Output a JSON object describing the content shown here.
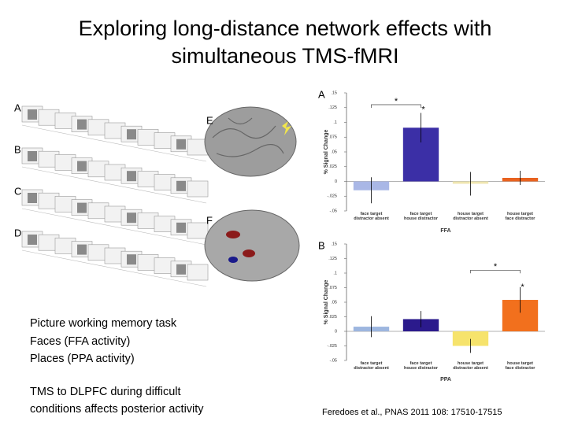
{
  "title": [
    "Exploring long-distance network effects with",
    "simultaneous TMS-fMRI"
  ],
  "figure": {
    "panel_labels": [
      "A",
      "B",
      "C",
      "D",
      "E",
      "F"
    ]
  },
  "body_text": [
    "Picture working memory task",
    "Faces (FFA activity)",
    "Places (PPA activity)"
  ],
  "conclusion_text": [
    "TMS to DLPFC during difficult",
    "conditions affects posterior activity"
  ],
  "citation": "Feredoes et al., PNAS 2011 108: 17510-17515",
  "chart_data": [
    {
      "type": "bar",
      "panel": "A",
      "ylabel": "% Signal Change",
      "xlabel": "FFA",
      "categories": [
        "face target\ndistractor absent",
        "face target\nhouse distractor",
        "house target\ndistractor absent",
        "house target\nface distractor"
      ],
      "values": [
        -0.015,
        0.091,
        -0.004,
        0.006
      ],
      "errors": [
        0.022,
        0.025,
        0.02,
        0.012
      ],
      "colors": [
        "#a9b7e6",
        "#3b2fa6",
        "#efe6b0",
        "#e8621f"
      ],
      "ylim": [
        -0.05,
        0.15
      ],
      "yticks": [
        {
          "value": 0.15,
          "label": ".15"
        },
        {
          "value": 0.125,
          "label": ".125"
        },
        {
          "value": 0.1,
          "label": ".1"
        },
        {
          "value": 0.075,
          "label": ".075"
        },
        {
          "value": 0.05,
          "label": ".05"
        },
        {
          "value": 0.025,
          "label": ".025"
        },
        0,
        {
          "value": -0.025,
          "label": "-.025"
        },
        {
          "value": -0.05,
          "label": "-.05"
        }
      ],
      "annotations": [
        "*",
        "*"
      ]
    },
    {
      "type": "bar",
      "panel": "B",
      "ylabel": "% Signal Change",
      "xlabel": "PPA",
      "categories": [
        "face target\ndistractor absent",
        "face target\nhouse distractor",
        "house target\ndistractor absent",
        "house target\nface distractor"
      ],
      "values": [
        0.008,
        0.021,
        -0.025,
        0.054
      ],
      "errors": [
        0.018,
        0.014,
        0.012,
        0.022
      ],
      "colors": [
        "#9db6df",
        "#2b1a8c",
        "#f6e36c",
        "#f2701d"
      ],
      "ylim": [
        -0.05,
        0.15
      ],
      "yticks": [
        {
          "value": 0.15,
          "label": ".15"
        },
        {
          "value": 0.125,
          "label": ".125"
        },
        {
          "value": 0.1,
          "label": ".1"
        },
        {
          "value": 0.075,
          "label": ".075"
        },
        {
          "value": 0.05,
          "label": ".05"
        },
        {
          "value": 0.025,
          "label": ".025"
        },
        0,
        {
          "value": -0.025,
          "label": "-.025"
        },
        {
          "value": -0.05,
          "label": "-.05"
        }
      ],
      "annotations": [
        "*",
        "*"
      ]
    }
  ]
}
